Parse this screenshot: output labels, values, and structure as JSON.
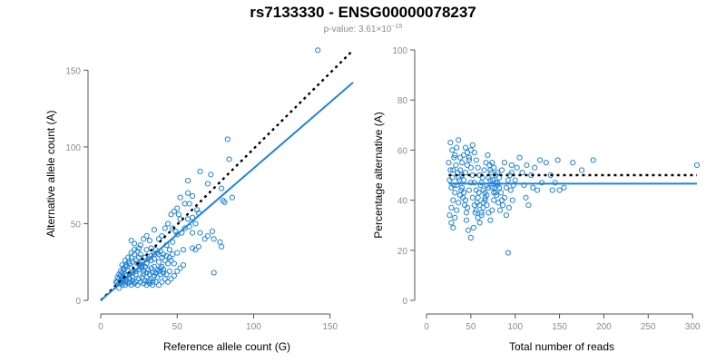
{
  "header": {
    "title": "rs7133330 - ENSG00000078237",
    "pvalue_prefix": "p-value: 3.61×10",
    "pvalue_exponent": "−15"
  },
  "colors": {
    "points": "#2183d6",
    "fit": "#2183d6",
    "reference": "#000000",
    "axis": "#555555",
    "ticks": "#8c8c8c"
  },
  "chart_data": [
    {
      "type": "scatter",
      "title": "",
      "xlabel": "Reference allele count (G)",
      "ylabel": "Alternative allele count (A)",
      "xlim": [
        0,
        165
      ],
      "ylim": [
        0,
        165
      ],
      "xticks": [
        0,
        50,
        100,
        150
      ],
      "yticks": [
        0,
        50,
        100,
        150
      ],
      "fit_line": {
        "from": [
          0,
          0
        ],
        "to": [
          165,
          142
        ]
      },
      "reference_line": {
        "from": [
          0,
          0
        ],
        "to": [
          165,
          163
        ]
      },
      "points": [
        [
          142,
          163
        ],
        [
          83,
          105
        ],
        [
          84,
          92
        ],
        [
          65,
          84
        ],
        [
          79,
          73
        ],
        [
          86,
          67
        ],
        [
          80,
          65
        ],
        [
          81,
          64
        ],
        [
          72,
          82
        ],
        [
          70,
          76
        ],
        [
          57,
          78
        ],
        [
          57,
          70
        ],
        [
          60,
          68
        ],
        [
          55,
          63
        ],
        [
          58,
          63
        ],
        [
          52,
          67
        ],
        [
          50,
          60
        ],
        [
          51,
          56
        ],
        [
          52,
          53
        ],
        [
          48,
          58
        ],
        [
          46,
          56
        ],
        [
          44,
          50
        ],
        [
          47,
          47
        ],
        [
          49,
          45
        ],
        [
          50,
          43
        ],
        [
          53,
          44
        ],
        [
          55,
          47
        ],
        [
          58,
          48
        ],
        [
          60,
          44
        ],
        [
          62,
          50
        ],
        [
          65,
          44
        ],
        [
          64,
          35
        ],
        [
          68,
          40
        ],
        [
          70,
          42
        ],
        [
          73,
          45
        ],
        [
          74,
          40
        ],
        [
          60,
          34
        ],
        [
          62,
          33
        ],
        [
          54,
          33
        ],
        [
          50,
          31
        ],
        [
          45,
          33
        ],
        [
          43,
          36
        ],
        [
          47,
          38
        ],
        [
          38,
          40
        ],
        [
          40,
          42
        ],
        [
          42,
          47
        ],
        [
          35,
          46
        ],
        [
          30,
          42
        ],
        [
          32,
          39
        ],
        [
          28,
          40
        ],
        [
          20,
          39
        ],
        [
          22,
          37
        ],
        [
          25,
          34
        ],
        [
          26,
          36
        ],
        [
          30,
          33
        ],
        [
          33,
          34
        ],
        [
          36,
          33
        ],
        [
          38,
          30
        ],
        [
          40,
          28
        ],
        [
          42,
          26
        ],
        [
          44,
          24
        ],
        [
          46,
          26
        ],
        [
          48,
          24
        ],
        [
          40,
          22
        ],
        [
          38,
          25
        ],
        [
          35,
          27
        ],
        [
          33,
          26
        ],
        [
          30,
          24
        ],
        [
          27,
          26
        ],
        [
          25,
          28
        ],
        [
          22,
          30
        ],
        [
          20,
          28
        ],
        [
          18,
          25
        ],
        [
          16,
          22
        ],
        [
          15,
          20
        ],
        [
          14,
          18
        ],
        [
          13,
          16
        ],
        [
          12,
          14
        ],
        [
          11,
          12
        ],
        [
          13,
          11
        ],
        [
          15,
          12
        ],
        [
          17,
          13
        ],
        [
          19,
          14
        ],
        [
          21,
          13
        ],
        [
          23,
          12
        ],
        [
          25,
          14
        ],
        [
          27,
          15
        ],
        [
          29,
          13
        ],
        [
          31,
          12
        ],
        [
          33,
          14
        ],
        [
          35,
          16
        ],
        [
          37,
          15
        ],
        [
          39,
          17
        ],
        [
          41,
          18
        ],
        [
          43,
          17
        ],
        [
          45,
          19
        ],
        [
          36,
          12
        ],
        [
          34,
          10
        ],
        [
          32,
          11
        ],
        [
          30,
          10
        ],
        [
          28,
          11
        ],
        [
          26,
          12
        ],
        [
          24,
          10
        ],
        [
          22,
          11
        ],
        [
          20,
          10
        ],
        [
          18,
          11
        ],
        [
          16,
          12
        ],
        [
          14,
          10
        ],
        [
          12,
          11
        ],
        [
          13,
          13
        ],
        [
          15,
          15
        ],
        [
          17,
          16
        ],
        [
          19,
          17
        ],
        [
          21,
          18
        ],
        [
          23,
          19
        ],
        [
          25,
          20
        ],
        [
          27,
          21
        ],
        [
          29,
          22
        ],
        [
          31,
          20
        ],
        [
          33,
          21
        ],
        [
          35,
          22
        ],
        [
          37,
          20
        ],
        [
          39,
          21
        ],
        [
          24,
          24
        ],
        [
          26,
          22
        ],
        [
          28,
          19
        ],
        [
          30,
          18
        ],
        [
          32,
          17
        ],
        [
          34,
          18
        ],
        [
          20,
          21
        ],
        [
          18,
          19
        ],
        [
          16,
          17
        ],
        [
          14,
          15
        ],
        [
          12,
          17
        ],
        [
          11,
          15
        ],
        [
          13,
          19
        ],
        [
          15,
          21
        ],
        [
          17,
          23
        ],
        [
          19,
          24
        ],
        [
          21,
          25
        ],
        [
          23,
          26
        ],
        [
          25,
          24
        ],
        [
          27,
          23
        ],
        [
          29,
          28
        ],
        [
          31,
          27
        ],
        [
          33,
          29
        ],
        [
          35,
          30
        ],
        [
          37,
          31
        ],
        [
          39,
          32
        ],
        [
          41,
          30
        ],
        [
          43,
          29
        ],
        [
          45,
          28
        ],
        [
          47,
          30
        ],
        [
          26,
          30
        ],
        [
          24,
          32
        ],
        [
          22,
          33
        ],
        [
          20,
          31
        ],
        [
          18,
          28
        ],
        [
          16,
          26
        ],
        [
          14,
          23
        ],
        [
          44,
          12
        ],
        [
          46,
          14
        ],
        [
          48,
          16
        ],
        [
          50,
          19
        ],
        [
          52,
          21
        ],
        [
          54,
          23
        ],
        [
          40,
          12
        ],
        [
          42,
          14
        ],
        [
          38,
          10
        ],
        [
          10,
          12
        ],
        [
          12,
          8
        ],
        [
          14,
          13
        ],
        [
          16,
          10
        ],
        [
          19,
          12
        ],
        [
          21,
          15
        ],
        [
          23,
          17
        ],
        [
          28,
          17
        ],
        [
          30,
          15
        ],
        [
          32,
          13
        ],
        [
          34,
          12
        ],
        [
          36,
          18
        ],
        [
          38,
          19
        ],
        [
          41,
          20
        ],
        [
          74,
          18
        ],
        [
          79,
          35
        ],
        [
          78,
          38
        ],
        [
          60,
          54
        ],
        [
          57,
          53
        ],
        [
          64,
          57
        ],
        [
          63,
          59
        ]
      ]
    },
    {
      "type": "scatter",
      "title": "",
      "xlabel": "Total number of reads",
      "ylabel": "Percentage alternative (A)",
      "xlim": [
        0,
        305
      ],
      "ylim": [
        0,
        100
      ],
      "xticks": [
        0,
        50,
        100,
        150,
        200,
        250,
        300
      ],
      "yticks": [
        0,
        20,
        40,
        60,
        80,
        100
      ],
      "fit_line": {
        "from": [
          25,
          46.6
        ],
        "to": [
          305,
          46.6
        ]
      },
      "reference_line": {
        "from": [
          25,
          50
        ],
        "to": [
          305,
          50
        ]
      },
      "points": [
        [
          305,
          54
        ],
        [
          188,
          56
        ],
        [
          175,
          52
        ],
        [
          165,
          55
        ],
        [
          148,
          56
        ],
        [
          140,
          50
        ],
        [
          135,
          55
        ],
        [
          128,
          56
        ],
        [
          122,
          53
        ],
        [
          118,
          50
        ],
        [
          113,
          54
        ],
        [
          108,
          51
        ],
        [
          105,
          57
        ],
        [
          100,
          48
        ],
        [
          98,
          46
        ],
        [
          95,
          44
        ],
        [
          97,
          40
        ],
        [
          93,
          37
        ],
        [
          90,
          34
        ],
        [
          92,
          19
        ],
        [
          110,
          46
        ],
        [
          112,
          41
        ],
        [
          115,
          38
        ],
        [
          120,
          45
        ],
        [
          125,
          44
        ],
        [
          130,
          47
        ],
        [
          145,
          47
        ],
        [
          150,
          44
        ],
        [
          155,
          45
        ],
        [
          142,
          44
        ],
        [
          102,
          53
        ],
        [
          96,
          51
        ],
        [
          88,
          55
        ],
        [
          85,
          52
        ],
        [
          82,
          49
        ],
        [
          80,
          46
        ],
        [
          78,
          50
        ],
        [
          76,
          53
        ],
        [
          74,
          55
        ],
        [
          72,
          48
        ],
        [
          70,
          45
        ],
        [
          68,
          42
        ],
        [
          66,
          40
        ],
        [
          64,
          37
        ],
        [
          62,
          35
        ],
        [
          60,
          38
        ],
        [
          58,
          41
        ],
        [
          56,
          44
        ],
        [
          54,
          47
        ],
        [
          52,
          50
        ],
        [
          50,
          53
        ],
        [
          48,
          56
        ],
        [
          46,
          59
        ],
        [
          44,
          61
        ],
        [
          42,
          58
        ],
        [
          40,
          55
        ],
        [
          38,
          52
        ],
        [
          36,
          49
        ],
        [
          34,
          46
        ],
        [
          32,
          43
        ],
        [
          30,
          40
        ],
        [
          28,
          37
        ],
        [
          26,
          34
        ],
        [
          28,
          31
        ],
        [
          30,
          29
        ],
        [
          32,
          33
        ],
        [
          34,
          36
        ],
        [
          36,
          39
        ],
        [
          38,
          42
        ],
        [
          40,
          45
        ],
        [
          42,
          48
        ],
        [
          44,
          51
        ],
        [
          46,
          54
        ],
        [
          48,
          57
        ],
        [
          50,
          60
        ],
        [
          52,
          62
        ],
        [
          54,
          59
        ],
        [
          56,
          56
        ],
        [
          58,
          53
        ],
        [
          60,
          50
        ],
        [
          62,
          47
        ],
        [
          64,
          44
        ],
        [
          66,
          41
        ],
        [
          68,
          38
        ],
        [
          70,
          35
        ],
        [
          72,
          32
        ],
        [
          74,
          36
        ],
        [
          76,
          40
        ],
        [
          78,
          43
        ],
        [
          80,
          47
        ],
        [
          45,
          32
        ],
        [
          47,
          28
        ],
        [
          50,
          25
        ],
        [
          53,
          29
        ],
        [
          55,
          35
        ],
        [
          57,
          39
        ],
        [
          59,
          43
        ],
        [
          61,
          46
        ],
        [
          63,
          49
        ],
        [
          65,
          52
        ],
        [
          67,
          55
        ],
        [
          69,
          58
        ],
        [
          71,
          54
        ],
        [
          73,
          51
        ],
        [
          75,
          48
        ],
        [
          77,
          45
        ],
        [
          79,
          42
        ],
        [
          81,
          39
        ],
        [
          83,
          36
        ],
        [
          85,
          40
        ],
        [
          27,
          63
        ],
        [
          29,
          60
        ],
        [
          31,
          57
        ],
        [
          33,
          54
        ],
        [
          35,
          51
        ],
        [
          37,
          48
        ],
        [
          39,
          44
        ],
        [
          41,
          41
        ],
        [
          43,
          38
        ],
        [
          45,
          35
        ],
        [
          26,
          48
        ],
        [
          28,
          45
        ],
        [
          30,
          52
        ],
        [
          32,
          58
        ],
        [
          34,
          61
        ],
        [
          36,
          64
        ],
        [
          38,
          57
        ],
        [
          40,
          50
        ],
        [
          42,
          43
        ],
        [
          44,
          40
        ],
        [
          46,
          37
        ],
        [
          48,
          44
        ],
        [
          50,
          47
        ],
        [
          52,
          41
        ],
        [
          54,
          38
        ],
        [
          56,
          36
        ],
        [
          58,
          33
        ],
        [
          60,
          31
        ],
        [
          62,
          34
        ],
        [
          64,
          39
        ],
        [
          66,
          43
        ],
        [
          68,
          46
        ],
        [
          70,
          49
        ],
        [
          72,
          52
        ],
        [
          74,
          45
        ],
        [
          76,
          43
        ],
        [
          78,
          47
        ],
        [
          80,
          51
        ],
        [
          82,
          45
        ],
        [
          84,
          43
        ],
        [
          86,
          38
        ],
        [
          88,
          41
        ],
        [
          90,
          45
        ],
        [
          92,
          48
        ],
        [
          94,
          50
        ],
        [
          96,
          54
        ],
        [
          25,
          55
        ],
        [
          27,
          52
        ],
        [
          29,
          49
        ],
        [
          31,
          46
        ]
      ]
    }
  ]
}
